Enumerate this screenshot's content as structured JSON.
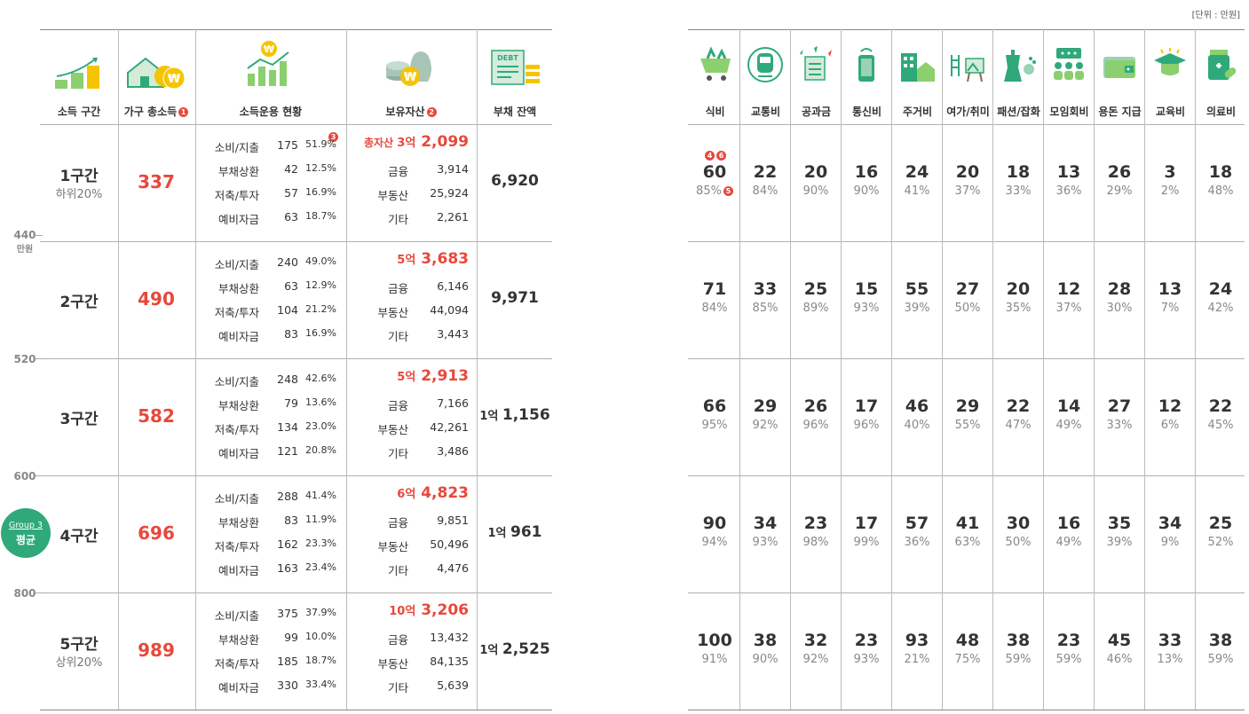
{
  "unit_note": "[단위 : 만원]",
  "left_headers": [
    "소득 구간",
    "가구 총소득",
    "소득운용 현황",
    "보유자산",
    "부채 잔액"
  ],
  "header_markers": {
    "income": "1",
    "assets": "2",
    "usage": "3"
  },
  "axis_labels": [
    "440",
    "만원",
    "520",
    "600",
    "800"
  ],
  "group_badge": {
    "line1": "Group 3",
    "line2": "평균"
  },
  "bands": [
    {
      "label": "1구간",
      "sub": "하위20%",
      "income": "337",
      "usage": [
        [
          "소비/지출",
          "175",
          "51.9%"
        ],
        [
          "부채상환",
          "42",
          "12.5%"
        ],
        [
          "저축/투자",
          "57",
          "16.9%"
        ],
        [
          "예비자금",
          "63",
          "18.7%"
        ]
      ],
      "asset_prefix": "총자산 ",
      "asset_unit": "3억",
      "asset_amount": "2,099",
      "assets": [
        [
          "금융",
          "3,914"
        ],
        [
          "부동산",
          "25,924"
        ],
        [
          "기타",
          "2,261"
        ]
      ],
      "debt_unit": "",
      "debt_amount": "6,920"
    },
    {
      "label": "2구간",
      "sub": "",
      "income": "490",
      "usage": [
        [
          "소비/지출",
          "240",
          "49.0%"
        ],
        [
          "부채상환",
          "63",
          "12.9%"
        ],
        [
          "저축/투자",
          "104",
          "21.2%"
        ],
        [
          "예비자금",
          "83",
          "16.9%"
        ]
      ],
      "asset_prefix": "",
      "asset_unit": "5억",
      "asset_amount": "3,683",
      "assets": [
        [
          "금융",
          "6,146"
        ],
        [
          "부동산",
          "44,094"
        ],
        [
          "기타",
          "3,443"
        ]
      ],
      "debt_unit": "",
      "debt_amount": "9,971"
    },
    {
      "label": "3구간",
      "sub": "",
      "income": "582",
      "usage": [
        [
          "소비/지출",
          "248",
          "42.6%"
        ],
        [
          "부채상환",
          "79",
          "13.6%"
        ],
        [
          "저축/투자",
          "134",
          "23.0%"
        ],
        [
          "예비자금",
          "121",
          "20.8%"
        ]
      ],
      "asset_prefix": "",
      "asset_unit": "5억",
      "asset_amount": "2,913",
      "assets": [
        [
          "금융",
          "7,166"
        ],
        [
          "부동산",
          "42,261"
        ],
        [
          "기타",
          "3,486"
        ]
      ],
      "debt_unit": "1억",
      "debt_amount": "1,156"
    },
    {
      "label": "4구간",
      "sub": "",
      "income": "696",
      "usage": [
        [
          "소비/지출",
          "288",
          "41.4%"
        ],
        [
          "부채상환",
          "83",
          "11.9%"
        ],
        [
          "저축/투자",
          "162",
          "23.3%"
        ],
        [
          "예비자금",
          "163",
          "23.4%"
        ]
      ],
      "asset_prefix": "",
      "asset_unit": "6억",
      "asset_amount": "4,823",
      "assets": [
        [
          "금융",
          "9,851"
        ],
        [
          "부동산",
          "50,496"
        ],
        [
          "기타",
          "4,476"
        ]
      ],
      "debt_unit": "1억",
      "debt_amount": "961"
    },
    {
      "label": "5구간",
      "sub": "상위20%",
      "income": "989",
      "usage": [
        [
          "소비/지출",
          "375",
          "37.9%"
        ],
        [
          "부채상환",
          "99",
          "10.0%"
        ],
        [
          "저축/투자",
          "185",
          "18.7%"
        ],
        [
          "예비자금",
          "330",
          "33.4%"
        ]
      ],
      "asset_prefix": "",
      "asset_unit": "10억",
      "asset_amount": "3,206",
      "assets": [
        [
          "금융",
          "13,432"
        ],
        [
          "부동산",
          "84,135"
        ],
        [
          "기타",
          "5,639"
        ]
      ],
      "debt_unit": "1억",
      "debt_amount": "2,525"
    }
  ],
  "expense_headers": [
    "식비",
    "교통비",
    "공과금",
    "통신비",
    "주거비",
    "여가/취미",
    "패션/잡화",
    "모임회비",
    "용돈 지급",
    "교육비",
    "의료비"
  ],
  "expense_markers": {
    "top": [
      "4",
      "6"
    ],
    "pct": "5"
  },
  "expenses": [
    [
      [
        "60",
        "85%"
      ],
      [
        "22",
        "84%"
      ],
      [
        "20",
        "90%"
      ],
      [
        "16",
        "90%"
      ],
      [
        "24",
        "41%"
      ],
      [
        "20",
        "37%"
      ],
      [
        "18",
        "33%"
      ],
      [
        "13",
        "36%"
      ],
      [
        "26",
        "29%"
      ],
      [
        "3",
        "2%"
      ],
      [
        "18",
        "48%"
      ]
    ],
    [
      [
        "71",
        "84%"
      ],
      [
        "33",
        "85%"
      ],
      [
        "25",
        "89%"
      ],
      [
        "15",
        "93%"
      ],
      [
        "55",
        "39%"
      ],
      [
        "27",
        "50%"
      ],
      [
        "20",
        "35%"
      ],
      [
        "12",
        "37%"
      ],
      [
        "28",
        "30%"
      ],
      [
        "13",
        "7%"
      ],
      [
        "24",
        "42%"
      ]
    ],
    [
      [
        "66",
        "95%"
      ],
      [
        "29",
        "92%"
      ],
      [
        "26",
        "96%"
      ],
      [
        "17",
        "96%"
      ],
      [
        "46",
        "40%"
      ],
      [
        "29",
        "55%"
      ],
      [
        "22",
        "47%"
      ],
      [
        "14",
        "49%"
      ],
      [
        "27",
        "33%"
      ],
      [
        "12",
        "6%"
      ],
      [
        "22",
        "45%"
      ]
    ],
    [
      [
        "90",
        "94%"
      ],
      [
        "34",
        "93%"
      ],
      [
        "23",
        "98%"
      ],
      [
        "17",
        "99%"
      ],
      [
        "57",
        "36%"
      ],
      [
        "41",
        "63%"
      ],
      [
        "30",
        "50%"
      ],
      [
        "16",
        "49%"
      ],
      [
        "35",
        "39%"
      ],
      [
        "34",
        "9%"
      ],
      [
        "25",
        "52%"
      ]
    ],
    [
      [
        "100",
        "91%"
      ],
      [
        "38",
        "90%"
      ],
      [
        "32",
        "92%"
      ],
      [
        "23",
        "93%"
      ],
      [
        "93",
        "21%"
      ],
      [
        "48",
        "75%"
      ],
      [
        "38",
        "59%"
      ],
      [
        "23",
        "59%"
      ],
      [
        "45",
        "46%"
      ],
      [
        "33",
        "13%"
      ],
      [
        "38",
        "59%"
      ]
    ]
  ]
}
